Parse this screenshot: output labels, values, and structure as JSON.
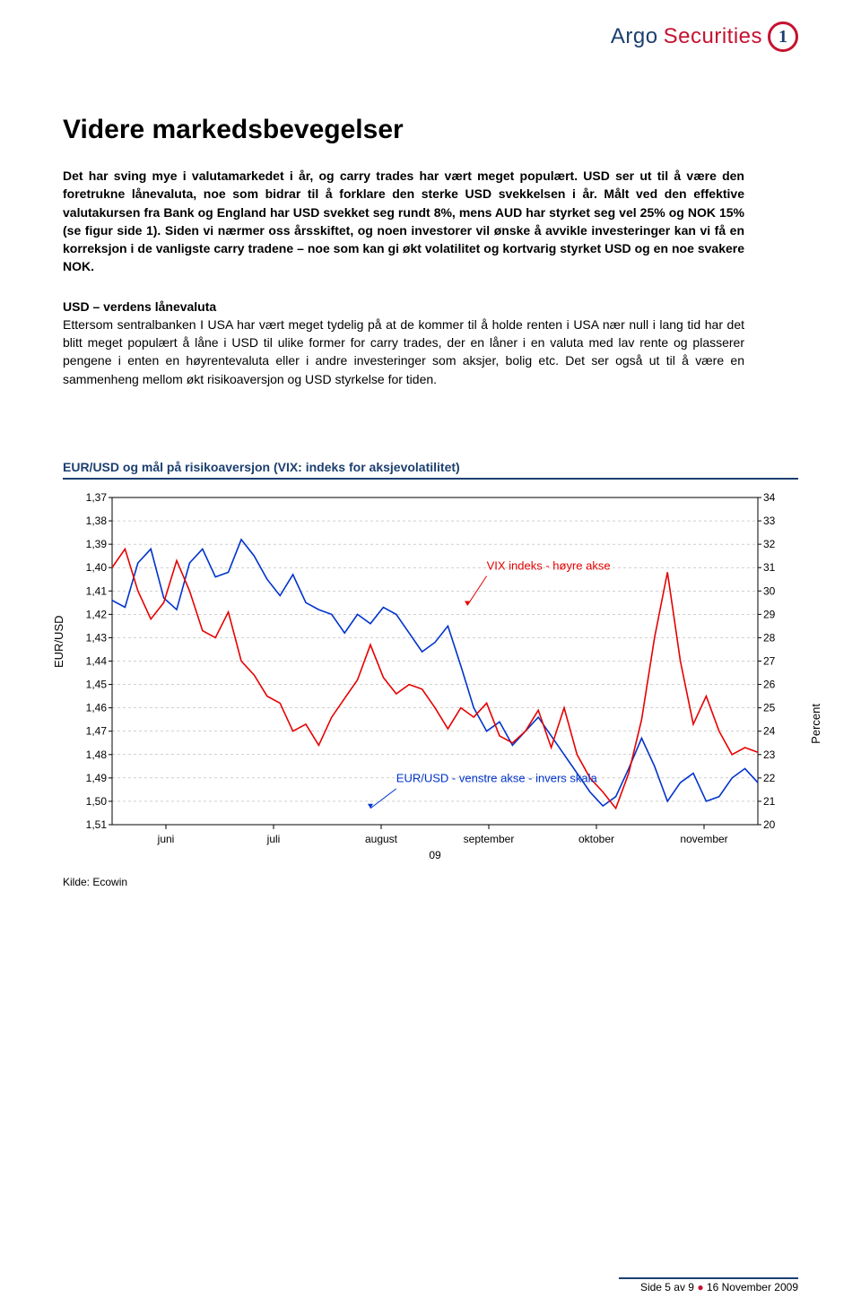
{
  "brand": {
    "name_part1": "Argo",
    "name_part2": "Securities",
    "mark_glyph": "1"
  },
  "title": "Videre markedsbevegelser",
  "lead_text": "Det har sving mye i valutamarkedet i år, og carry trades har vært meget populært. USD ser ut til å være den foretrukne lånevaluta, noe som bidrar til å forklare den sterke USD svekkelsen i år. Målt ved den effektive valutakursen fra Bank og England har USD svekket seg rundt 8%, mens AUD har styrket seg vel 25% og NOK 15% (se figur side 1). Siden vi nærmer oss årsskiftet, og noen investorer vil ønske å avvikle investeringer kan vi få en korreksjon i de vanligste carry tradene – noe som kan gi økt volatilitet og kortvarig styrket USD og en noe svakere NOK.",
  "subheading": "USD – verdens lånevaluta",
  "body_text": "Ettersom sentralbanken I USA har vært meget tydelig på at de kommer til å holde renten i USA nær null i lang tid har det blitt meget populært å låne i USD til ulike former for carry trades, der en låner i en valuta med lav rente og plasserer pengene i enten en høyrentevaluta eller i andre investeringer som aksjer, bolig etc. Det ser også ut til å være en sammenheng mellom økt risikoaversjon og USD styrkelse for tiden.",
  "chart": {
    "title": "EUR/USD og mål på risikoaversjon (VIX: indeks for aksjevolatilitet)",
    "type": "line-dual-axis",
    "left_axis": {
      "label": "EUR/USD",
      "min": 1.37,
      "max": 1.51,
      "step": 0.01,
      "inverted": true,
      "tick_format": "comma",
      "ticks": [
        "1,37",
        "1,38",
        "1,39",
        "1,40",
        "1,41",
        "1,42",
        "1,43",
        "1,44",
        "1,45",
        "1,46",
        "1,47",
        "1,48",
        "1,49",
        "1,50",
        "1,51"
      ]
    },
    "right_axis": {
      "label": "Percent",
      "min": 20,
      "max": 34,
      "step": 1,
      "ticks": [
        "34",
        "33",
        "32",
        "31",
        "30",
        "29",
        "28",
        "27",
        "26",
        "25",
        "24",
        "23",
        "22",
        "21",
        "20"
      ]
    },
    "x_categories": [
      "juni",
      "juli",
      "august",
      "september",
      "oktober",
      "november"
    ],
    "x_subtitle": "09",
    "grid_color": "#a0a0a0",
    "background_color": "#ffffff",
    "series": [
      {
        "name": "EUR/USD",
        "color": "#0033cc",
        "width": 1.6,
        "annotation": "EUR/USD - venstre akse - invers skala",
        "data": [
          [
            0.0,
            1.414
          ],
          [
            0.02,
            1.417
          ],
          [
            0.04,
            1.398
          ],
          [
            0.06,
            1.392
          ],
          [
            0.08,
            1.413
          ],
          [
            0.1,
            1.418
          ],
          [
            0.12,
            1.398
          ],
          [
            0.14,
            1.392
          ],
          [
            0.16,
            1.404
          ],
          [
            0.18,
            1.402
          ],
          [
            0.2,
            1.388
          ],
          [
            0.22,
            1.395
          ],
          [
            0.24,
            1.405
          ],
          [
            0.26,
            1.412
          ],
          [
            0.28,
            1.403
          ],
          [
            0.3,
            1.415
          ],
          [
            0.32,
            1.418
          ],
          [
            0.34,
            1.42
          ],
          [
            0.36,
            1.428
          ],
          [
            0.38,
            1.42
          ],
          [
            0.4,
            1.424
          ],
          [
            0.42,
            1.417
          ],
          [
            0.44,
            1.42
          ],
          [
            0.46,
            1.428
          ],
          [
            0.48,
            1.436
          ],
          [
            0.5,
            1.432
          ],
          [
            0.52,
            1.425
          ],
          [
            0.54,
            1.442
          ],
          [
            0.56,
            1.46
          ],
          [
            0.58,
            1.47
          ],
          [
            0.6,
            1.466
          ],
          [
            0.62,
            1.476
          ],
          [
            0.64,
            1.47
          ],
          [
            0.66,
            1.464
          ],
          [
            0.68,
            1.472
          ],
          [
            0.7,
            1.48
          ],
          [
            0.72,
            1.488
          ],
          [
            0.74,
            1.496
          ],
          [
            0.76,
            1.502
          ],
          [
            0.78,
            1.498
          ],
          [
            0.8,
            1.486
          ],
          [
            0.82,
            1.473
          ],
          [
            0.84,
            1.485
          ],
          [
            0.86,
            1.5
          ],
          [
            0.88,
            1.492
          ],
          [
            0.9,
            1.488
          ],
          [
            0.92,
            1.5
          ],
          [
            0.94,
            1.498
          ],
          [
            0.96,
            1.49
          ],
          [
            0.98,
            1.486
          ],
          [
            1.0,
            1.492
          ]
        ]
      },
      {
        "name": "VIX",
        "color": "#e60000",
        "width": 1.6,
        "annotation": "VIX indeks - høyre akse",
        "data": [
          [
            0.0,
            31.0
          ],
          [
            0.02,
            31.8
          ],
          [
            0.04,
            30.0
          ],
          [
            0.06,
            28.8
          ],
          [
            0.08,
            29.5
          ],
          [
            0.1,
            31.3
          ],
          [
            0.12,
            30.0
          ],
          [
            0.14,
            28.3
          ],
          [
            0.16,
            28.0
          ],
          [
            0.18,
            29.1
          ],
          [
            0.2,
            27.0
          ],
          [
            0.22,
            26.4
          ],
          [
            0.24,
            25.5
          ],
          [
            0.26,
            25.2
          ],
          [
            0.28,
            24.0
          ],
          [
            0.3,
            24.3
          ],
          [
            0.32,
            23.4
          ],
          [
            0.34,
            24.6
          ],
          [
            0.36,
            25.4
          ],
          [
            0.38,
            26.2
          ],
          [
            0.4,
            27.7
          ],
          [
            0.42,
            26.3
          ],
          [
            0.44,
            25.6
          ],
          [
            0.46,
            26.0
          ],
          [
            0.48,
            25.8
          ],
          [
            0.5,
            25.0
          ],
          [
            0.52,
            24.1
          ],
          [
            0.54,
            25.0
          ],
          [
            0.56,
            24.6
          ],
          [
            0.58,
            25.2
          ],
          [
            0.6,
            23.8
          ],
          [
            0.62,
            23.5
          ],
          [
            0.64,
            24.0
          ],
          [
            0.66,
            24.9
          ],
          [
            0.68,
            23.3
          ],
          [
            0.7,
            25.0
          ],
          [
            0.72,
            23.0
          ],
          [
            0.74,
            22.0
          ],
          [
            0.76,
            21.4
          ],
          [
            0.78,
            20.7
          ],
          [
            0.8,
            22.2
          ],
          [
            0.82,
            24.5
          ],
          [
            0.84,
            28.0
          ],
          [
            0.86,
            30.8
          ],
          [
            0.88,
            27.0
          ],
          [
            0.9,
            24.3
          ],
          [
            0.92,
            25.5
          ],
          [
            0.94,
            24.0
          ],
          [
            0.96,
            23.0
          ],
          [
            0.98,
            23.3
          ],
          [
            1.0,
            23.1
          ]
        ]
      }
    ]
  },
  "source_label": "Kilde: Ecowin",
  "footer": {
    "page_text": "Side 5 av 9",
    "date_text": "16 November 2009",
    "bullet": "●"
  }
}
